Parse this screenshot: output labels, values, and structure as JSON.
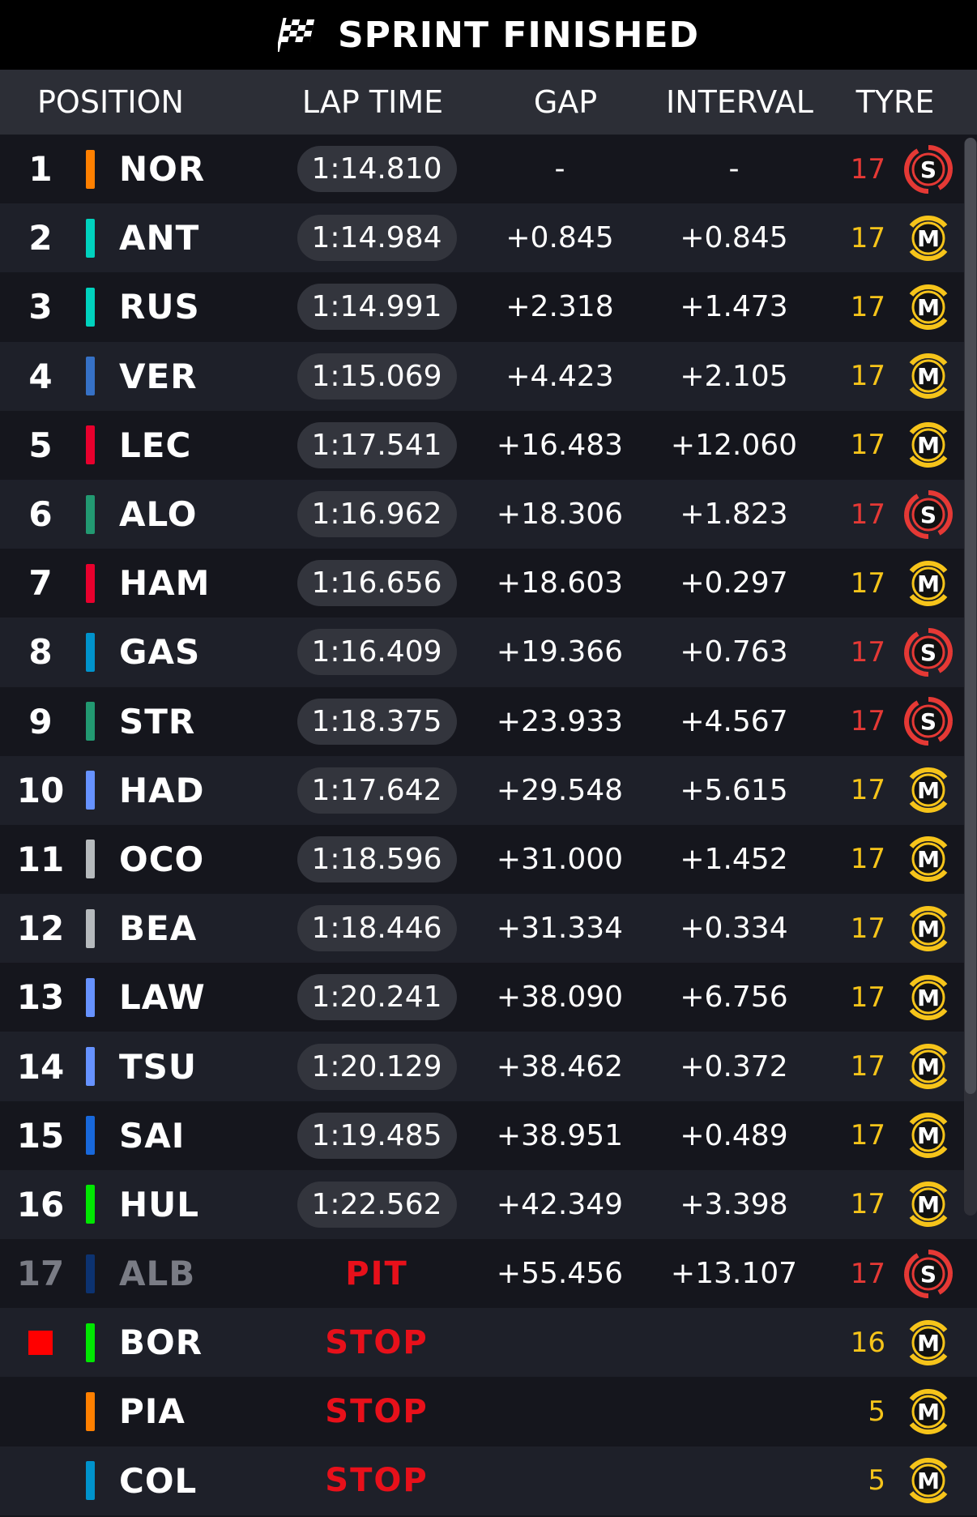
{
  "header_title": "SPRINT FINISHED",
  "columns": {
    "position": "POSITION",
    "lap_time": "LAP TIME",
    "gap": "GAP",
    "interval": "INTERVAL",
    "tyre": "TYRE"
  },
  "colors": {
    "soft": "#e53935",
    "medium": "#f6c41a",
    "stop": "#e8101a"
  },
  "rows": [
    {
      "pos": "1",
      "team_color": "#ff8000",
      "driver": "NOR",
      "lap": "1:14.810",
      "gap": "-",
      "interval": "-",
      "laps": "17",
      "tyre": "soft",
      "tyre_letter": "S"
    },
    {
      "pos": "2",
      "team_color": "#00d2be",
      "driver": "ANT",
      "lap": "1:14.984",
      "gap": "+0.845",
      "interval": "+0.845",
      "laps": "17",
      "tyre": "medium",
      "tyre_letter": "M"
    },
    {
      "pos": "3",
      "team_color": "#00d2be",
      "driver": "RUS",
      "lap": "1:14.991",
      "gap": "+2.318",
      "interval": "+1.473",
      "laps": "17",
      "tyre": "medium",
      "tyre_letter": "M"
    },
    {
      "pos": "4",
      "team_color": "#3671c6",
      "driver": "VER",
      "lap": "1:15.069",
      "gap": "+4.423",
      "interval": "+2.105",
      "laps": "17",
      "tyre": "medium",
      "tyre_letter": "M"
    },
    {
      "pos": "5",
      "team_color": "#e8002d",
      "driver": "LEC",
      "lap": "1:17.541",
      "gap": "+16.483",
      "interval": "+12.060",
      "laps": "17",
      "tyre": "medium",
      "tyre_letter": "M"
    },
    {
      "pos": "6",
      "team_color": "#229971",
      "driver": "ALO",
      "lap": "1:16.962",
      "gap": "+18.306",
      "interval": "+1.823",
      "laps": "17",
      "tyre": "soft",
      "tyre_letter": "S"
    },
    {
      "pos": "7",
      "team_color": "#e8002d",
      "driver": "HAM",
      "lap": "1:16.656",
      "gap": "+18.603",
      "interval": "+0.297",
      "laps": "17",
      "tyre": "medium",
      "tyre_letter": "M"
    },
    {
      "pos": "8",
      "team_color": "#0093cc",
      "driver": "GAS",
      "lap": "1:16.409",
      "gap": "+19.366",
      "interval": "+0.763",
      "laps": "17",
      "tyre": "soft",
      "tyre_letter": "S"
    },
    {
      "pos": "9",
      "team_color": "#229971",
      "driver": "STR",
      "lap": "1:18.375",
      "gap": "+23.933",
      "interval": "+4.567",
      "laps": "17",
      "tyre": "soft",
      "tyre_letter": "S"
    },
    {
      "pos": "10",
      "team_color": "#6692ff",
      "driver": "HAD",
      "lap": "1:17.642",
      "gap": "+29.548",
      "interval": "+5.615",
      "laps": "17",
      "tyre": "medium",
      "tyre_letter": "M"
    },
    {
      "pos": "11",
      "team_color": "#b6babd",
      "driver": "OCO",
      "lap": "1:18.596",
      "gap": "+31.000",
      "interval": "+1.452",
      "laps": "17",
      "tyre": "medium",
      "tyre_letter": "M"
    },
    {
      "pos": "12",
      "team_color": "#b6babd",
      "driver": "BEA",
      "lap": "1:18.446",
      "gap": "+31.334",
      "interval": "+0.334",
      "laps": "17",
      "tyre": "medium",
      "tyre_letter": "M"
    },
    {
      "pos": "13",
      "team_color": "#6692ff",
      "driver": "LAW",
      "lap": "1:20.241",
      "gap": "+38.090",
      "interval": "+6.756",
      "laps": "17",
      "tyre": "medium",
      "tyre_letter": "M"
    },
    {
      "pos": "14",
      "team_color": "#6692ff",
      "driver": "TSU",
      "lap": "1:20.129",
      "gap": "+38.462",
      "interval": "+0.372",
      "laps": "17",
      "tyre": "medium",
      "tyre_letter": "M"
    },
    {
      "pos": "15",
      "team_color": "#1868db",
      "driver": "SAI",
      "lap": "1:19.485",
      "gap": "+38.951",
      "interval": "+0.489",
      "laps": "17",
      "tyre": "medium",
      "tyre_letter": "M"
    },
    {
      "pos": "16",
      "team_color": "#00e701",
      "driver": "HUL",
      "lap": "1:22.562",
      "gap": "+42.349",
      "interval": "+3.398",
      "laps": "17",
      "tyre": "medium",
      "tyre_letter": "M"
    },
    {
      "pos": "17",
      "team_color": "#0c3270",
      "driver": "ALB",
      "status": "PIT",
      "gap": "+55.456",
      "interval": "+13.107",
      "laps": "17",
      "tyre": "soft",
      "tyre_letter": "S",
      "dim": true
    },
    {
      "pos": "",
      "stop_marker": true,
      "team_color": "#00e701",
      "driver": "BOR",
      "status": "STOP",
      "gap": "",
      "interval": "",
      "laps": "16",
      "tyre": "medium",
      "tyre_letter": "M"
    },
    {
      "pos": "",
      "team_color": "#ff8000",
      "driver": "PIA",
      "status": "STOP",
      "gap": "",
      "interval": "",
      "laps": "5",
      "tyre": "medium",
      "tyre_letter": "M"
    },
    {
      "pos": "",
      "team_color": "#0093cc",
      "driver": "COL",
      "status": "STOP",
      "gap": "",
      "interval": "",
      "laps": "5",
      "tyre": "medium",
      "tyre_letter": "M"
    }
  ]
}
